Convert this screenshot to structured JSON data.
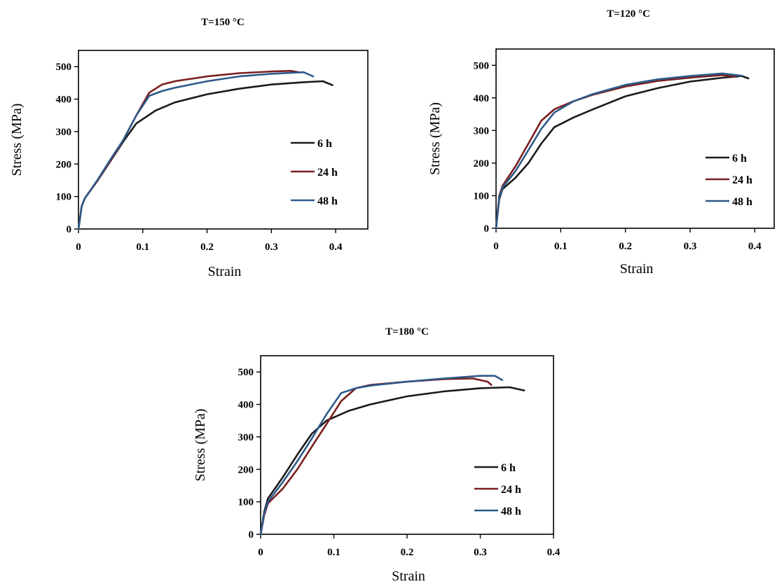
{
  "chart_data": [
    {
      "type": "line",
      "title": "T=150 °C",
      "xlabel": "Strain",
      "ylabel": "Stress (MPa)",
      "xlim": [
        0,
        0.45
      ],
      "ylim": [
        0,
        550
      ],
      "x_ticks": [
        "0",
        "0.1",
        "0.2",
        "0.3",
        "0.4"
      ],
      "y_ticks": [
        "0",
        "100",
        "200",
        "300",
        "400",
        "500"
      ],
      "grid": false,
      "legend": "right",
      "series": [
        {
          "name": "6 h",
          "color": "#1a1a1a",
          "x": [
            0,
            0.005,
            0.01,
            0.03,
            0.05,
            0.07,
            0.09,
            0.12,
            0.15,
            0.2,
            0.25,
            0.3,
            0.35,
            0.38,
            0.395
          ],
          "y": [
            0,
            70,
            95,
            150,
            210,
            270,
            325,
            365,
            390,
            415,
            432,
            445,
            452,
            455,
            443
          ]
        },
        {
          "name": "24 h",
          "color": "#7a1f1f",
          "x": [
            0,
            0.005,
            0.01,
            0.03,
            0.05,
            0.07,
            0.09,
            0.11,
            0.13,
            0.15,
            0.2,
            0.25,
            0.3,
            0.33,
            0.345
          ],
          "y": [
            0,
            70,
            95,
            150,
            210,
            275,
            350,
            420,
            445,
            455,
            470,
            480,
            485,
            487,
            482
          ]
        },
        {
          "name": "48 h",
          "color": "#2e5a8a",
          "x": [
            0,
            0.005,
            0.01,
            0.03,
            0.05,
            0.07,
            0.09,
            0.11,
            0.13,
            0.15,
            0.2,
            0.25,
            0.3,
            0.35,
            0.365
          ],
          "y": [
            0,
            70,
            95,
            152,
            215,
            275,
            350,
            410,
            425,
            435,
            455,
            470,
            478,
            483,
            470
          ]
        }
      ]
    },
    {
      "type": "line",
      "title": "T=120 °C",
      "xlabel": "Strain",
      "ylabel": "Stress (MPa)",
      "xlim": [
        0,
        0.43
      ],
      "ylim": [
        0,
        550
      ],
      "x_ticks": [
        "0",
        "0.1",
        "0.2",
        "0.3",
        "0.4"
      ],
      "y_ticks": [
        "0",
        "100",
        "200",
        "300",
        "400",
        "500"
      ],
      "grid": false,
      "legend": "right",
      "series": [
        {
          "name": "6 h",
          "color": "#1a1a1a",
          "x": [
            0,
            0.005,
            0.01,
            0.03,
            0.05,
            0.07,
            0.09,
            0.12,
            0.15,
            0.2,
            0.25,
            0.3,
            0.35,
            0.38,
            0.39
          ],
          "y": [
            0,
            90,
            120,
            155,
            200,
            260,
            310,
            340,
            365,
            405,
            430,
            450,
            462,
            467,
            460
          ]
        },
        {
          "name": "24 h",
          "color": "#7a1f1f",
          "x": [
            0,
            0.005,
            0.01,
            0.03,
            0.05,
            0.07,
            0.09,
            0.12,
            0.15,
            0.2,
            0.25,
            0.3,
            0.35,
            0.37
          ],
          "y": [
            0,
            100,
            130,
            190,
            260,
            330,
            365,
            390,
            410,
            435,
            452,
            462,
            470,
            465
          ]
        },
        {
          "name": "48 h",
          "color": "#2e5a8a",
          "x": [
            0,
            0.005,
            0.01,
            0.03,
            0.05,
            0.07,
            0.09,
            0.12,
            0.15,
            0.2,
            0.25,
            0.3,
            0.35,
            0.38
          ],
          "y": [
            0,
            95,
            125,
            175,
            240,
            305,
            355,
            390,
            412,
            440,
            457,
            467,
            475,
            468
          ]
        }
      ]
    },
    {
      "type": "line",
      "title": "T=180 °C",
      "xlabel": "Strain",
      "ylabel": "Stress (MPa)",
      "xlim": [
        0,
        0.4
      ],
      "ylim": [
        0,
        550
      ],
      "x_ticks": [
        "0",
        "0.1",
        "0.2",
        "0.3",
        "0.4"
      ],
      "y_ticks": [
        "0",
        "100",
        "200",
        "300",
        "400",
        "500"
      ],
      "grid": false,
      "legend": "right",
      "series": [
        {
          "name": "6 h",
          "color": "#1a1a1a",
          "x": [
            0,
            0.005,
            0.01,
            0.03,
            0.05,
            0.07,
            0.09,
            0.12,
            0.15,
            0.2,
            0.25,
            0.3,
            0.34,
            0.36
          ],
          "y": [
            0,
            70,
            110,
            175,
            245,
            310,
            350,
            380,
            400,
            425,
            440,
            450,
            453,
            443
          ]
        },
        {
          "name": "24 h",
          "color": "#7a1f1f",
          "x": [
            0,
            0.005,
            0.01,
            0.03,
            0.05,
            0.07,
            0.09,
            0.11,
            0.13,
            0.15,
            0.2,
            0.25,
            0.29,
            0.31,
            0.315
          ],
          "y": [
            0,
            60,
            95,
            140,
            200,
            270,
            340,
            410,
            450,
            460,
            470,
            478,
            480,
            470,
            460
          ]
        },
        {
          "name": "48 h",
          "color": "#2e5a8a",
          "x": [
            0,
            0.005,
            0.01,
            0.03,
            0.05,
            0.07,
            0.09,
            0.11,
            0.13,
            0.15,
            0.2,
            0.25,
            0.3,
            0.32,
            0.33
          ],
          "y": [
            0,
            65,
            100,
            160,
            225,
            295,
            370,
            435,
            450,
            458,
            470,
            480,
            488,
            488,
            475
          ]
        }
      ]
    }
  ]
}
